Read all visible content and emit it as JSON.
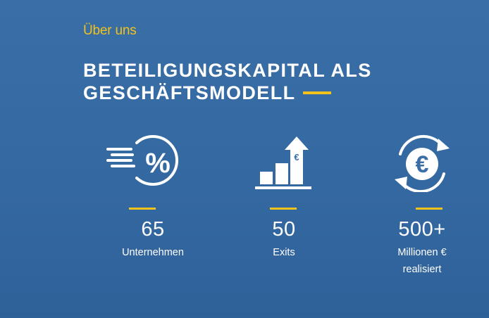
{
  "section": {
    "eyebrow": "Über uns",
    "headline_line1": "BETEILIGUNGSKAPITAL ALS",
    "headline_line2": "GESCHÄFTSMODELL"
  },
  "colors": {
    "accent": "#f2c21b",
    "background": "#3a6ea6",
    "text": "#ffffff"
  },
  "stats": [
    {
      "icon": "percent-speed-icon",
      "value": "65",
      "label": "Unternehmen",
      "label_line2": ""
    },
    {
      "icon": "growth-bars-euro-icon",
      "value": "50",
      "label": "Exits",
      "label_line2": ""
    },
    {
      "icon": "euro-cycle-icon",
      "value": "500+",
      "label": "Millionen €",
      "label_line2": "realisiert"
    }
  ]
}
